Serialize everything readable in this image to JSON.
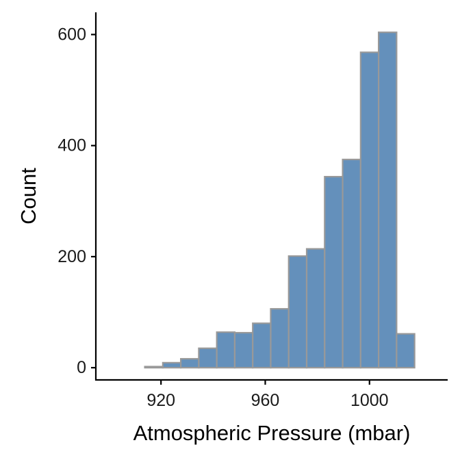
{
  "chart_data": {
    "type": "bar",
    "subtype": "histogram",
    "title": "",
    "xlabel": "Atmospheric Pressure (mbar)",
    "ylabel": "Count",
    "xlim": [
      895,
      1030
    ],
    "ylim": [
      -22,
      640
    ],
    "x_ticks": [
      920,
      960,
      1000
    ],
    "x_tick_labels": [
      "920",
      "960",
      "1000"
    ],
    "y_ticks": [
      0,
      200,
      400,
      600
    ],
    "y_tick_labels": [
      "0",
      "200",
      "400",
      "600"
    ],
    "bin_width": 6.9,
    "bins": [
      {
        "start": 900.0,
        "end": 906.9,
        "count": 0
      },
      {
        "start": 906.9,
        "end": 913.8,
        "count": 0
      },
      {
        "start": 913.8,
        "end": 920.7,
        "count": 2
      },
      {
        "start": 920.7,
        "end": 927.6,
        "count": 9
      },
      {
        "start": 927.6,
        "end": 934.5,
        "count": 16
      },
      {
        "start": 934.5,
        "end": 941.4,
        "count": 35
      },
      {
        "start": 941.4,
        "end": 948.3,
        "count": 64
      },
      {
        "start": 948.3,
        "end": 955.2,
        "count": 63
      },
      {
        "start": 955.2,
        "end": 962.1,
        "count": 80
      },
      {
        "start": 962.1,
        "end": 969.0,
        "count": 106
      },
      {
        "start": 969.0,
        "end": 975.9,
        "count": 201
      },
      {
        "start": 975.9,
        "end": 982.8,
        "count": 214
      },
      {
        "start": 982.8,
        "end": 989.7,
        "count": 344
      },
      {
        "start": 989.7,
        "end": 996.6,
        "count": 375
      },
      {
        "start": 996.6,
        "end": 1003.5,
        "count": 568
      },
      {
        "start": 1003.5,
        "end": 1010.4,
        "count": 604
      },
      {
        "start": 1010.4,
        "end": 1017.3,
        "count": 61
      },
      {
        "start": 1017.3,
        "end": 1024.2,
        "count": 0
      }
    ],
    "legend": "none",
    "grid": false,
    "colors": {
      "bar_fill": "#6490bb",
      "bar_stroke": "#999999",
      "axis": "#000000",
      "text": "#1a1a1a"
    }
  }
}
